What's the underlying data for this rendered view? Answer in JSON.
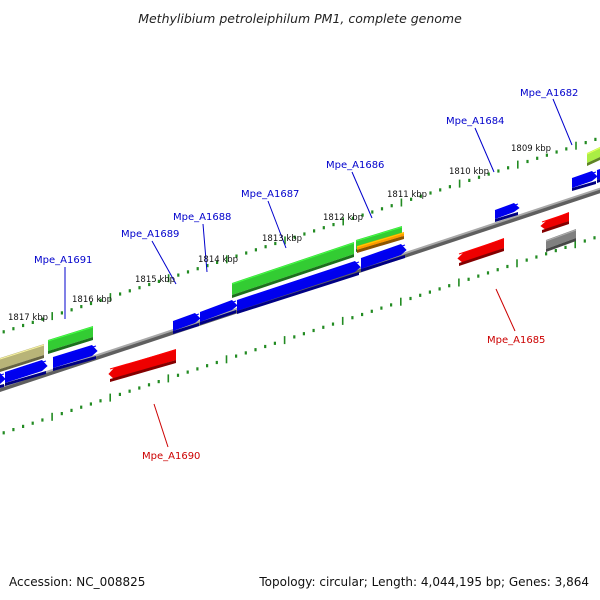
{
  "title": "Methylibium petroleiphilum PM1, complete genome",
  "footer": {
    "accession": "Accession: NC_008825",
    "summary": "Topology: circular; Length: 4,044,195 bp; Genes: 3,864"
  },
  "colors": {
    "plus_label": "#0000cc",
    "minus_label": "#cc0000",
    "tick": "#228b22",
    "backbone": "#8c8c8c"
  },
  "kbp_labels": [
    "1809 kbp",
    "1810 kbp",
    "1811 kbp",
    "1812 kbp",
    "1813 kbp",
    "1814 kbp",
    "1815 kbp",
    "1816 kbp",
    "1817 kbp"
  ],
  "gene_labels": [
    {
      "text": "Mpe_A1682",
      "strand": "plus"
    },
    {
      "text": "Mpe_A1684",
      "strand": "plus"
    },
    {
      "text": "Mpe_A1686",
      "strand": "plus"
    },
    {
      "text": "Mpe_A1687",
      "strand": "plus"
    },
    {
      "text": "Mpe_A1688",
      "strand": "plus"
    },
    {
      "text": "Mpe_A1689",
      "strand": "plus"
    },
    {
      "text": "Mpe_A1691",
      "strand": "plus"
    },
    {
      "text": "Mpe_A1685",
      "strand": "minus"
    },
    {
      "text": "Mpe_A1690",
      "strand": "minus"
    }
  ]
}
